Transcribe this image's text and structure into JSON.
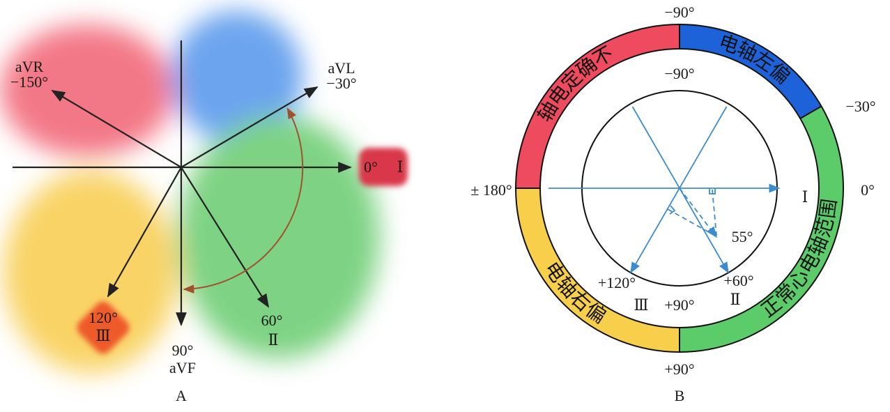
{
  "panel_a": {
    "label": "A",
    "avr": {
      "name": "aVR",
      "angle": "−150°"
    },
    "avl": {
      "name": "aVL",
      "angle": "−30°"
    },
    "lead_i": {
      "angle": "0°",
      "name": "Ⅰ"
    },
    "lead_iii": {
      "angle": "120°",
      "name": "Ⅲ"
    },
    "avf": {
      "angle": "90°",
      "name": "aVF"
    },
    "lead_ii": {
      "angle": "60°",
      "name": "Ⅱ"
    }
  },
  "panel_b": {
    "label": "B",
    "outer_labels": {
      "top": "−90°",
      "right_upper": "−30°",
      "right": "0°",
      "left": "± 180°",
      "bottom": "+90°"
    },
    "inner_labels": {
      "top": "−90°",
      "bottom": "+90°",
      "plus120": "+120°",
      "lead_iii": "Ⅲ",
      "plus60": "+60°",
      "lead_ii": "Ⅱ",
      "lead_i": "Ⅰ",
      "axis_angle": "55°"
    },
    "ring": {
      "indeterminate": "轴电定确不",
      "left_deviation": "电轴左偏",
      "normal": "正常心电轴范围",
      "right_deviation": "电轴右偏"
    }
  }
}
